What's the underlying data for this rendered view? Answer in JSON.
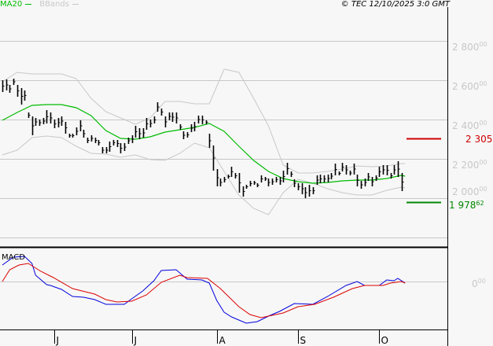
{
  "header": {
    "legend_ma": "MA20",
    "legend_bb": "BBands",
    "copyright": "© TEC 12/10/2025 3:0 GMT"
  },
  "colors": {
    "ma": "#00bb00",
    "bbands": "#c8c8c8",
    "bars": "#000000",
    "macd": "#0000dd",
    "signal": "#dd0000",
    "resistance": "#cc0000",
    "support": "#008800"
  },
  "chart_data": [
    {
      "type": "ohlc",
      "indicators": [
        "MA20",
        "BBands"
      ],
      "y_ticks": [
        {
          "value": 2800,
          "main": "2 800",
          "dec": "00"
        },
        {
          "value": 2600,
          "main": "2 600",
          "dec": "00"
        },
        {
          "value": 2400,
          "main": "2 400",
          "dec": "00"
        },
        {
          "value": 2200,
          "main": "2 200",
          "dec": "00"
        },
        {
          "value": 2000,
          "main": "2 000",
          "dec": "00"
        },
        {
          "value": 1800,
          "main": "",
          "dec": ""
        }
      ],
      "ylim": [
        1720,
        2990
      ],
      "grid": true,
      "x_months": [
        "J",
        "J",
        "A",
        "S",
        "O"
      ],
      "month_start_bar": [
        14,
        35,
        58,
        80,
        102
      ],
      "bars_high_low": [
        [
          2600,
          2540
        ],
        [
          2604,
          2548
        ],
        [
          2576,
          2536
        ],
        [
          2608,
          2576
        ],
        [
          2576,
          2516
        ],
        [
          2560,
          2476
        ],
        [
          2548,
          2496
        ],
        [
          2436,
          2408
        ],
        [
          2416,
          2320
        ],
        [
          2408,
          2368
        ],
        [
          2400,
          2368
        ],
        [
          2408,
          2376
        ],
        [
          2448,
          2380
        ],
        [
          2436,
          2380
        ],
        [
          2400,
          2356
        ],
        [
          2408,
          2360
        ],
        [
          2416,
          2368
        ],
        [
          2388,
          2328
        ],
        [
          2328,
          2308
        ],
        [
          2328,
          2308
        ],
        [
          2360,
          2320
        ],
        [
          2396,
          2340
        ],
        [
          2348,
          2308
        ],
        [
          2308,
          2280
        ],
        [
          2320,
          2288
        ],
        [
          2308,
          2280
        ],
        [
          2296,
          2268
        ],
        [
          2260,
          2228
        ],
        [
          2260,
          2228
        ],
        [
          2288,
          2236
        ],
        [
          2296,
          2268
        ],
        [
          2296,
          2260
        ],
        [
          2280,
          2228
        ],
        [
          2280,
          2240
        ],
        [
          2308,
          2276
        ],
        [
          2320,
          2280
        ],
        [
          2368,
          2308
        ],
        [
          2356,
          2300
        ],
        [
          2356,
          2308
        ],
        [
          2408,
          2348
        ],
        [
          2400,
          2360
        ],
        [
          2416,
          2380
        ],
        [
          2488,
          2440
        ],
        [
          2456,
          2420
        ],
        [
          2416,
          2360
        ],
        [
          2436,
          2396
        ],
        [
          2436,
          2388
        ],
        [
          2436,
          2380
        ],
        [
          2376,
          2348
        ],
        [
          2340,
          2300
        ],
        [
          2336,
          2308
        ],
        [
          2376,
          2336
        ],
        [
          2388,
          2340
        ],
        [
          2420,
          2380
        ],
        [
          2420,
          2376
        ],
        [
          2396,
          2376
        ],
        [
          2328,
          2256
        ],
        [
          2268,
          2140
        ],
        [
          2148,
          2060
        ],
        [
          2100,
          2060
        ],
        [
          2108,
          2080
        ],
        [
          2120,
          2100
        ],
        [
          2160,
          2108
        ],
        [
          2128,
          2100
        ],
        [
          2128,
          2028
        ],
        [
          2060,
          2008
        ],
        [
          2068,
          2048
        ],
        [
          2088,
          2060
        ],
        [
          2088,
          2068
        ],
        [
          2076,
          2056
        ],
        [
          2116,
          2080
        ],
        [
          2108,
          2088
        ],
        [
          2100,
          2060
        ],
        [
          2100,
          2068
        ],
        [
          2108,
          2080
        ],
        [
          2108,
          2068
        ],
        [
          2140,
          2080
        ],
        [
          2180,
          2120
        ],
        [
          2136,
          2108
        ],
        [
          2096,
          2056
        ],
        [
          2076,
          2040
        ],
        [
          2076,
          2020
        ],
        [
          2056,
          2000
        ],
        [
          2068,
          2008
        ],
        [
          2056,
          2020
        ],
        [
          2116,
          2068
        ],
        [
          2120,
          2076
        ],
        [
          2116,
          2080
        ],
        [
          2120,
          2080
        ],
        [
          2128,
          2096
        ],
        [
          2176,
          2116
        ],
        [
          2136,
          2116
        ],
        [
          2180,
          2136
        ],
        [
          2168,
          2120
        ],
        [
          2140,
          2116
        ],
        [
          2176,
          2120
        ],
        [
          2120,
          2060
        ],
        [
          2088,
          2048
        ],
        [
          2100,
          2060
        ],
        [
          2128,
          2088
        ],
        [
          2108,
          2060
        ],
        [
          2116,
          2088
        ],
        [
          2160,
          2108
        ],
        [
          2168,
          2120
        ],
        [
          2168,
          2116
        ],
        [
          2128,
          2100
        ],
        [
          2168,
          2120
        ],
        [
          2188,
          2108
        ],
        [
          2128,
          2036
        ]
      ],
      "indicator_bar_index": [
        0,
        4,
        8,
        12,
        16,
        20,
        24,
        28,
        32,
        36,
        40,
        44,
        48,
        52,
        56,
        60,
        64,
        68,
        72,
        76,
        80,
        84,
        88,
        92,
        96,
        100,
        104,
        108,
        109
      ],
      "ma20": [
        2396,
        2436,
        2472,
        2476,
        2476,
        2460,
        2420,
        2344,
        2304,
        2300,
        2312,
        2336,
        2348,
        2360,
        2380,
        2340,
        2264,
        2192,
        2136,
        2100,
        2084,
        2076,
        2080,
        2088,
        2092,
        2092,
        2100,
        2116,
        2112
      ],
      "bb_upper": [
        2592,
        2640,
        2632,
        2632,
        2632,
        2608,
        2508,
        2440,
        2408,
        2376,
        2408,
        2492,
        2492,
        2480,
        2480,
        2656,
        2640,
        2508,
        2368,
        2168,
        2128,
        2128,
        2136,
        2148,
        2164,
        2160,
        2164,
        2176,
        2176
      ],
      "bb_lower": [
        2220,
        2244,
        2308,
        2316,
        2308,
        2264,
        2228,
        2224,
        2208,
        2220,
        2196,
        2192,
        2228,
        2280,
        2256,
        2136,
        2016,
        1948,
        1916,
        2028,
        2096,
        2076,
        2048,
        2028,
        2016,
        2016,
        2040,
        2056,
        2052
      ],
      "levels": [
        {
          "value": 2305,
          "main": "2 305 2",
          "dec": "",
          "color": "#cc0000"
        },
        {
          "value": 1978.62,
          "main": "1 978",
          "dec": "62",
          "color": "#008800"
        }
      ]
    },
    {
      "type": "line",
      "title": "MACD",
      "y_ticks": [
        {
          "value": 0,
          "main": "0",
          "dec": "00"
        }
      ],
      "ylim": [
        -122,
        86
      ],
      "series": [
        {
          "points": [
            [
              0,
              42
            ],
            [
              3,
              62
            ],
            [
              6,
              64
            ],
            [
              8,
              46
            ],
            [
              9,
              16
            ],
            [
              12,
              -8
            ],
            [
              13,
              -10
            ],
            [
              16,
              -20
            ],
            [
              19,
              -38
            ],
            [
              22,
              -40
            ],
            [
              25,
              -46
            ],
            [
              28,
              -58
            ],
            [
              33,
              -58
            ],
            [
              35,
              -44
            ],
            [
              38,
              -24
            ],
            [
              41,
              2
            ],
            [
              43,
              28
            ],
            [
              47,
              30
            ],
            [
              50,
              6
            ],
            [
              54,
              4
            ],
            [
              56,
              -4
            ],
            [
              58,
              -48
            ],
            [
              60,
              -78
            ],
            [
              62,
              -90
            ],
            [
              66,
              -106
            ],
            [
              69,
              -102
            ],
            [
              72,
              -88
            ],
            [
              75,
              -76
            ],
            [
              79,
              -56
            ],
            [
              84,
              -58
            ],
            [
              88,
              -38
            ],
            [
              93,
              -10
            ],
            [
              96,
              0
            ],
            [
              98,
              -10
            ],
            [
              102,
              -10
            ],
            [
              104,
              4
            ],
            [
              106,
              2
            ],
            [
              107,
              8
            ],
            [
              109,
              -4
            ]
          ],
          "color": "#0000dd"
        },
        {
          "points": [
            [
              0,
              0
            ],
            [
              2,
              30
            ],
            [
              4.5,
              42
            ],
            [
              7,
              46
            ],
            [
              10.4,
              26
            ],
            [
              13.8,
              10
            ],
            [
              19,
              -18
            ],
            [
              25,
              -32
            ],
            [
              28,
              -46
            ],
            [
              31,
              -52
            ],
            [
              35,
              -50
            ],
            [
              39,
              -34
            ],
            [
              43,
              -2
            ],
            [
              48,
              16
            ],
            [
              50,
              10
            ],
            [
              55.5,
              8
            ],
            [
              59,
              -18
            ],
            [
              64,
              -64
            ],
            [
              67,
              -84
            ],
            [
              70,
              -92
            ],
            [
              76,
              -80
            ],
            [
              80,
              -64
            ],
            [
              84.5,
              -58
            ],
            [
              89.6,
              -40
            ],
            [
              94.7,
              -18
            ],
            [
              98,
              -10
            ],
            [
              103,
              -10
            ],
            [
              105,
              -4
            ],
            [
              108,
              0
            ],
            [
              109,
              -4
            ]
          ],
          "color": "#dd0000"
        }
      ]
    }
  ]
}
